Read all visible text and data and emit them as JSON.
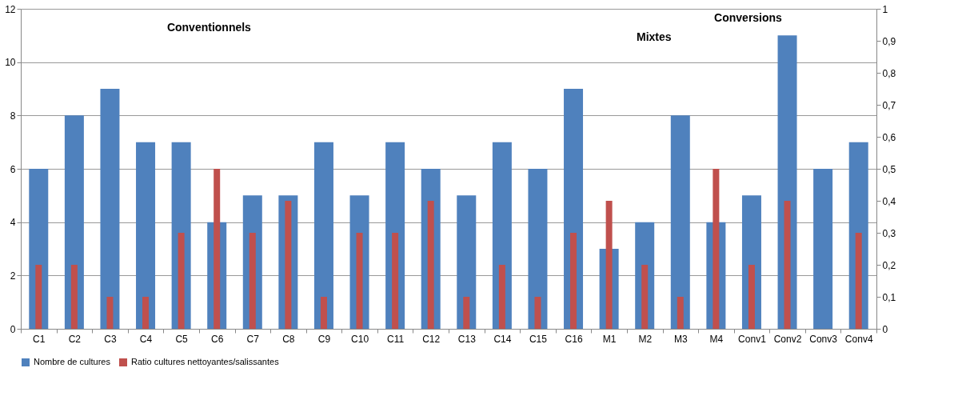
{
  "chart_data": {
    "type": "bar",
    "categories": [
      "C1",
      "C2",
      "C3",
      "C4",
      "C5",
      "C6",
      "C7",
      "C8",
      "C9",
      "C10",
      "C11",
      "C12",
      "C13",
      "C14",
      "C15",
      "C16",
      "M1",
      "M2",
      "M3",
      "M4",
      "Conv1",
      "Conv2",
      "Conv3",
      "Conv4"
    ],
    "series": [
      {
        "name": "Nombre de cultures",
        "color": "#4f81bd",
        "values": [
          6,
          8,
          9,
          7,
          7,
          4,
          5,
          5,
          7,
          5,
          7,
          6,
          5,
          7,
          6,
          9,
          3,
          4,
          8,
          4,
          5,
          11,
          6,
          7
        ]
      },
      {
        "name": "Ratio cultures nettoyantes/salissantes",
        "color": "#c0504d",
        "axis": "y2",
        "values": [
          0.2,
          0.2,
          0.1,
          0.1,
          0.3,
          0.5,
          0.3,
          0.4,
          0.1,
          0.3,
          0.3,
          0.4,
          0.1,
          0.2,
          0.1,
          0.3,
          0.4,
          0.2,
          0.1,
          0.5,
          0.2,
          0.4,
          null,
          0.3
        ]
      }
    ],
    "ylim": [
      0,
      12
    ],
    "yticks": [
      0,
      2,
      4,
      6,
      8,
      10,
      12
    ],
    "y2lim": [
      0,
      1
    ],
    "y2ticks": [
      0,
      {
        "value": 0.1,
        "label": "0,1"
      },
      {
        "value": 0.2,
        "label": "0,2"
      },
      {
        "value": 0.3,
        "label": "0,3"
      },
      {
        "value": 0.4,
        "label": "0,4"
      },
      {
        "value": 0.5,
        "label": "0,5"
      },
      {
        "value": 0.6,
        "label": "0,6"
      },
      {
        "value": 0.7,
        "label": "0,7"
      },
      {
        "value": 0.8,
        "label": "0,8"
      },
      {
        "value": 0.9,
        "label": "0,9"
      },
      1
    ],
    "annotations": [
      "Conventionnels",
      "Mixtes",
      "Conversions"
    ],
    "grid": "y",
    "legend": "bottom"
  }
}
